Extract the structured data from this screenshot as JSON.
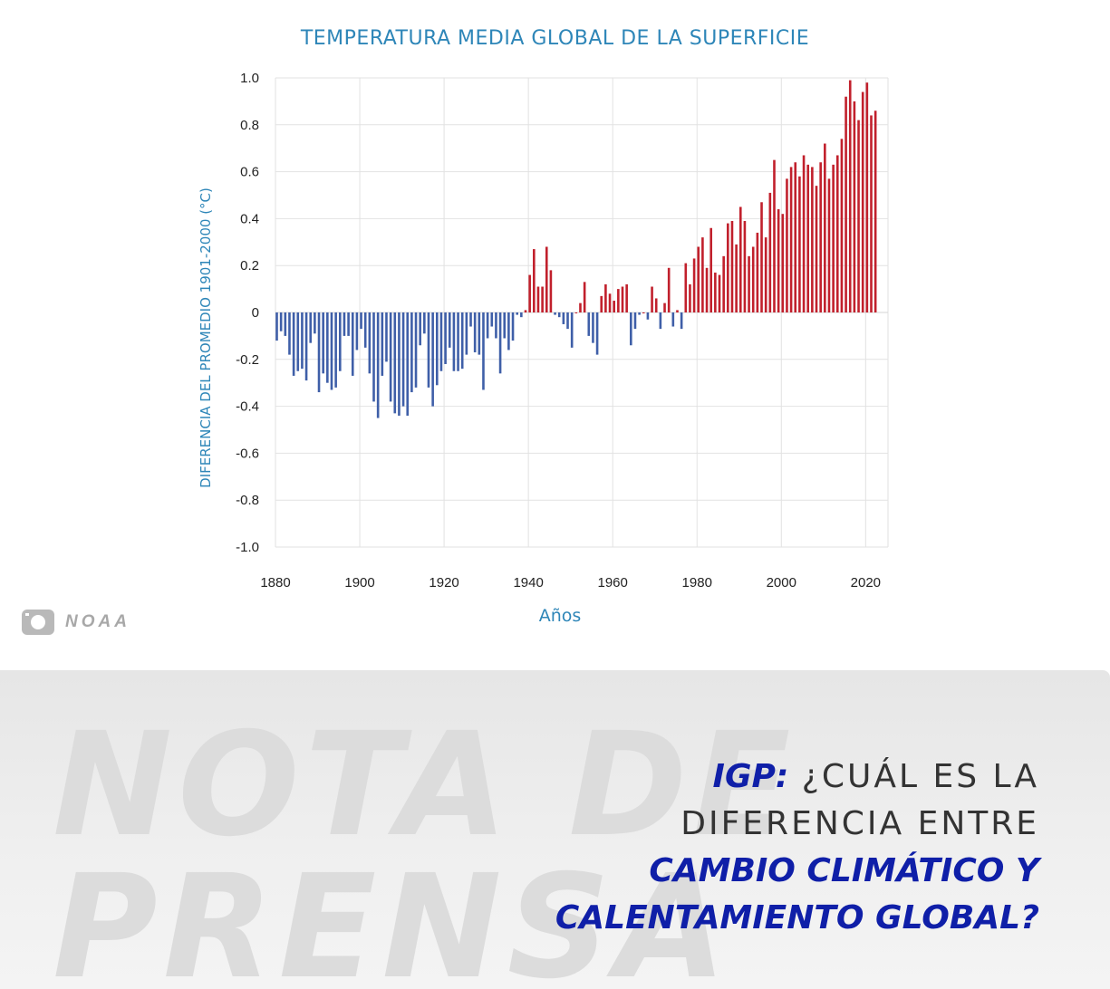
{
  "chart_data": {
    "type": "bar",
    "title": "TEMPERATURA MEDIA GLOBAL DE LA SUPERFICIE",
    "xlabel": "Años",
    "ylabel": "DIFERENCIA DEL PROMEDIO 1901-2000 (°C)",
    "xlim": [
      1880,
      2023
    ],
    "ylim": [
      -1.0,
      1.0
    ],
    "x_ticks": [
      1880,
      1900,
      1920,
      1940,
      1960,
      1980,
      2000,
      2020
    ],
    "y_ticks": [
      {
        "value": 1.0,
        "label": "1.0"
      },
      {
        "value": 0.8,
        "label": "0.8"
      },
      {
        "value": 0.6,
        "label": "0.6"
      },
      {
        "value": 0.4,
        "label": "0.4"
      },
      {
        "value": 0.2,
        "label": "0.2"
      },
      {
        "value": 0,
        "label": "0"
      },
      {
        "value": -0.2,
        "label": "-0.2"
      },
      {
        "value": -0.4,
        "label": "-0.4"
      },
      {
        "value": -0.6,
        "label": "-0.6"
      },
      {
        "value": -0.8,
        "label": "-0.8"
      },
      {
        "value": -1.0,
        "label": "-1.0"
      }
    ],
    "grid": "vertical",
    "colors": {
      "positive": "#c1202c",
      "negative": "#3f5fa8",
      "grid": "#e2e2e2"
    },
    "years": [
      1880,
      1881,
      1882,
      1883,
      1884,
      1885,
      1886,
      1887,
      1888,
      1889,
      1890,
      1891,
      1892,
      1893,
      1894,
      1895,
      1896,
      1897,
      1898,
      1899,
      1900,
      1901,
      1902,
      1903,
      1904,
      1905,
      1906,
      1907,
      1908,
      1909,
      1910,
      1911,
      1912,
      1913,
      1914,
      1915,
      1916,
      1917,
      1918,
      1919,
      1920,
      1921,
      1922,
      1923,
      1924,
      1925,
      1926,
      1927,
      1928,
      1929,
      1930,
      1931,
      1932,
      1933,
      1934,
      1935,
      1936,
      1937,
      1938,
      1939,
      1940,
      1941,
      1942,
      1943,
      1944,
      1945,
      1946,
      1947,
      1948,
      1949,
      1950,
      1951,
      1952,
      1953,
      1954,
      1955,
      1956,
      1957,
      1958,
      1959,
      1960,
      1961,
      1962,
      1963,
      1964,
      1965,
      1966,
      1967,
      1968,
      1969,
      1970,
      1971,
      1972,
      1973,
      1974,
      1975,
      1976,
      1977,
      1978,
      1979,
      1980,
      1981,
      1982,
      1983,
      1984,
      1985,
      1986,
      1987,
      1988,
      1989,
      1990,
      1991,
      1992,
      1993,
      1994,
      1995,
      1996,
      1997,
      1998,
      1999,
      2000,
      2001,
      2002,
      2003,
      2004,
      2005,
      2006,
      2007,
      2008,
      2009,
      2010,
      2011,
      2012,
      2013,
      2014,
      2015,
      2016,
      2017,
      2018,
      2019,
      2020,
      2021,
      2022
    ],
    "values": [
      -0.12,
      -0.08,
      -0.1,
      -0.18,
      -0.27,
      -0.25,
      -0.24,
      -0.29,
      -0.13,
      -0.09,
      -0.34,
      -0.26,
      -0.3,
      -0.33,
      -0.32,
      -0.25,
      -0.1,
      -0.1,
      -0.27,
      -0.16,
      -0.07,
      -0.15,
      -0.26,
      -0.38,
      -0.45,
      -0.27,
      -0.21,
      -0.38,
      -0.43,
      -0.44,
      -0.4,
      -0.44,
      -0.34,
      -0.32,
      -0.14,
      -0.09,
      -0.32,
      -0.4,
      -0.31,
      -0.25,
      -0.22,
      -0.15,
      -0.25,
      -0.25,
      -0.24,
      -0.18,
      -0.06,
      -0.17,
      -0.18,
      -0.33,
      -0.11,
      -0.06,
      -0.11,
      -0.26,
      -0.11,
      -0.16,
      -0.12,
      -0.01,
      -0.02,
      0.01,
      0.16,
      0.27,
      0.11,
      0.11,
      0.28,
      0.18,
      -0.01,
      -0.02,
      -0.05,
      -0.07,
      -0.15,
      -0.0,
      0.04,
      0.13,
      -0.1,
      -0.13,
      -0.18,
      0.07,
      0.12,
      0.08,
      0.05,
      0.1,
      0.11,
      0.12,
      -0.14,
      -0.07,
      -0.01,
      0.0,
      -0.03,
      0.11,
      0.06,
      -0.07,
      0.04,
      0.19,
      -0.06,
      0.01,
      -0.07,
      0.21,
      0.12,
      0.23,
      0.28,
      0.32,
      0.19,
      0.36,
      0.17,
      0.16,
      0.24,
      0.38,
      0.39,
      0.29,
      0.45,
      0.39,
      0.24,
      0.28,
      0.34,
      0.47,
      0.32,
      0.51,
      0.65,
      0.44,
      0.42,
      0.57,
      0.62,
      0.64,
      0.58,
      0.67,
      0.63,
      0.62,
      0.54,
      0.64,
      0.72,
      0.57,
      0.63,
      0.67,
      0.74,
      0.92,
      0.99,
      0.9,
      0.82,
      0.94,
      0.98,
      0.84,
      0.86
    ]
  },
  "credit": {
    "source": "NOAA",
    "icon": "camera-icon"
  },
  "banner": {
    "watermark_line1": "NOTA DE",
    "watermark_line2": "PRENSA",
    "headline_prefix": "IGP:",
    "headline_line1": " ¿CUÁL ES LA",
    "headline_line2": "DIFERENCIA ENTRE",
    "headline_line3": "CAMBIO CLIMÁTICO Y",
    "headline_line4": "CALENTAMIENTO GLOBAL?"
  }
}
